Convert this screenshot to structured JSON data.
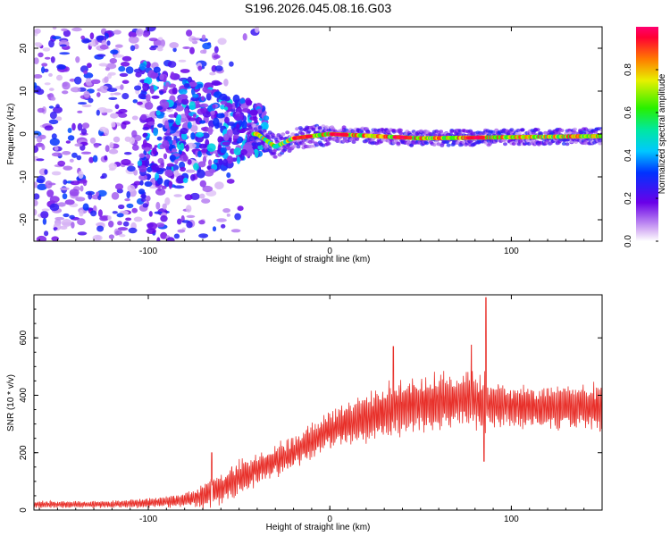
{
  "title": "S196.2026.045.08.16.G03",
  "chart_data": [
    {
      "type": "heatmap",
      "title": "S196.2026.045.08.16.G03",
      "xlabel": "Height of straight line (km)",
      "ylabel": "Frequency (Hz)",
      "xlim": [
        -163,
        150
      ],
      "ylim": [
        -25,
        25
      ],
      "xticks": [
        -100,
        0,
        100
      ],
      "yticks": [
        -20,
        -10,
        0,
        10,
        20
      ],
      "colorbar": {
        "label": "Normalized spectral amplitude",
        "range": [
          0,
          1
        ],
        "ticks": [
          "0.0",
          "0.2",
          "0.4",
          "0.6",
          "0.8"
        ]
      },
      "ridge": {
        "description_points": [
          [
            -40,
            0
          ],
          [
            -30,
            -3
          ],
          [
            -20,
            -1
          ],
          [
            0,
            0
          ],
          [
            50,
            -1
          ],
          [
            150,
            -0.5
          ]
        ],
        "peak_amplitude_points": [
          [
            -15,
            0
          ],
          [
            5,
            0
          ],
          [
            40,
            -1
          ],
          [
            80,
            -0.5
          ]
        ]
      },
      "noise_region_x": [
        -163,
        -40
      ]
    },
    {
      "type": "line",
      "xlabel": "Height of straight line (km)",
      "ylabel": "SNR (10 * v/v)",
      "xlim": [
        -163,
        150
      ],
      "ylim": [
        0,
        750
      ],
      "xticks": [
        -100,
        0,
        100
      ],
      "yticks": [
        0,
        200,
        400,
        600
      ],
      "series": [
        {
          "name": "SNR",
          "color": "#e8302a",
          "envelope_x": [
            -163,
            -120,
            -100,
            -80,
            -70,
            -60,
            -40,
            -20,
            0,
            20,
            40,
            60,
            80,
            100,
            120,
            150
          ],
          "envelope_mean": [
            20,
            20,
            25,
            35,
            50,
            80,
            140,
            200,
            280,
            320,
            360,
            380,
            380,
            360,
            360,
            360
          ],
          "envelope_amp": [
            10,
            10,
            15,
            20,
            40,
            50,
            50,
            50,
            60,
            80,
            80,
            80,
            90,
            60,
            70,
            70
          ],
          "spikes": [
            [
              -65,
              200
            ],
            [
              35,
              570
            ],
            [
              78,
              575
            ],
            [
              86,
              740
            ],
            [
              85,
              170
            ]
          ]
        }
      ]
    }
  ]
}
